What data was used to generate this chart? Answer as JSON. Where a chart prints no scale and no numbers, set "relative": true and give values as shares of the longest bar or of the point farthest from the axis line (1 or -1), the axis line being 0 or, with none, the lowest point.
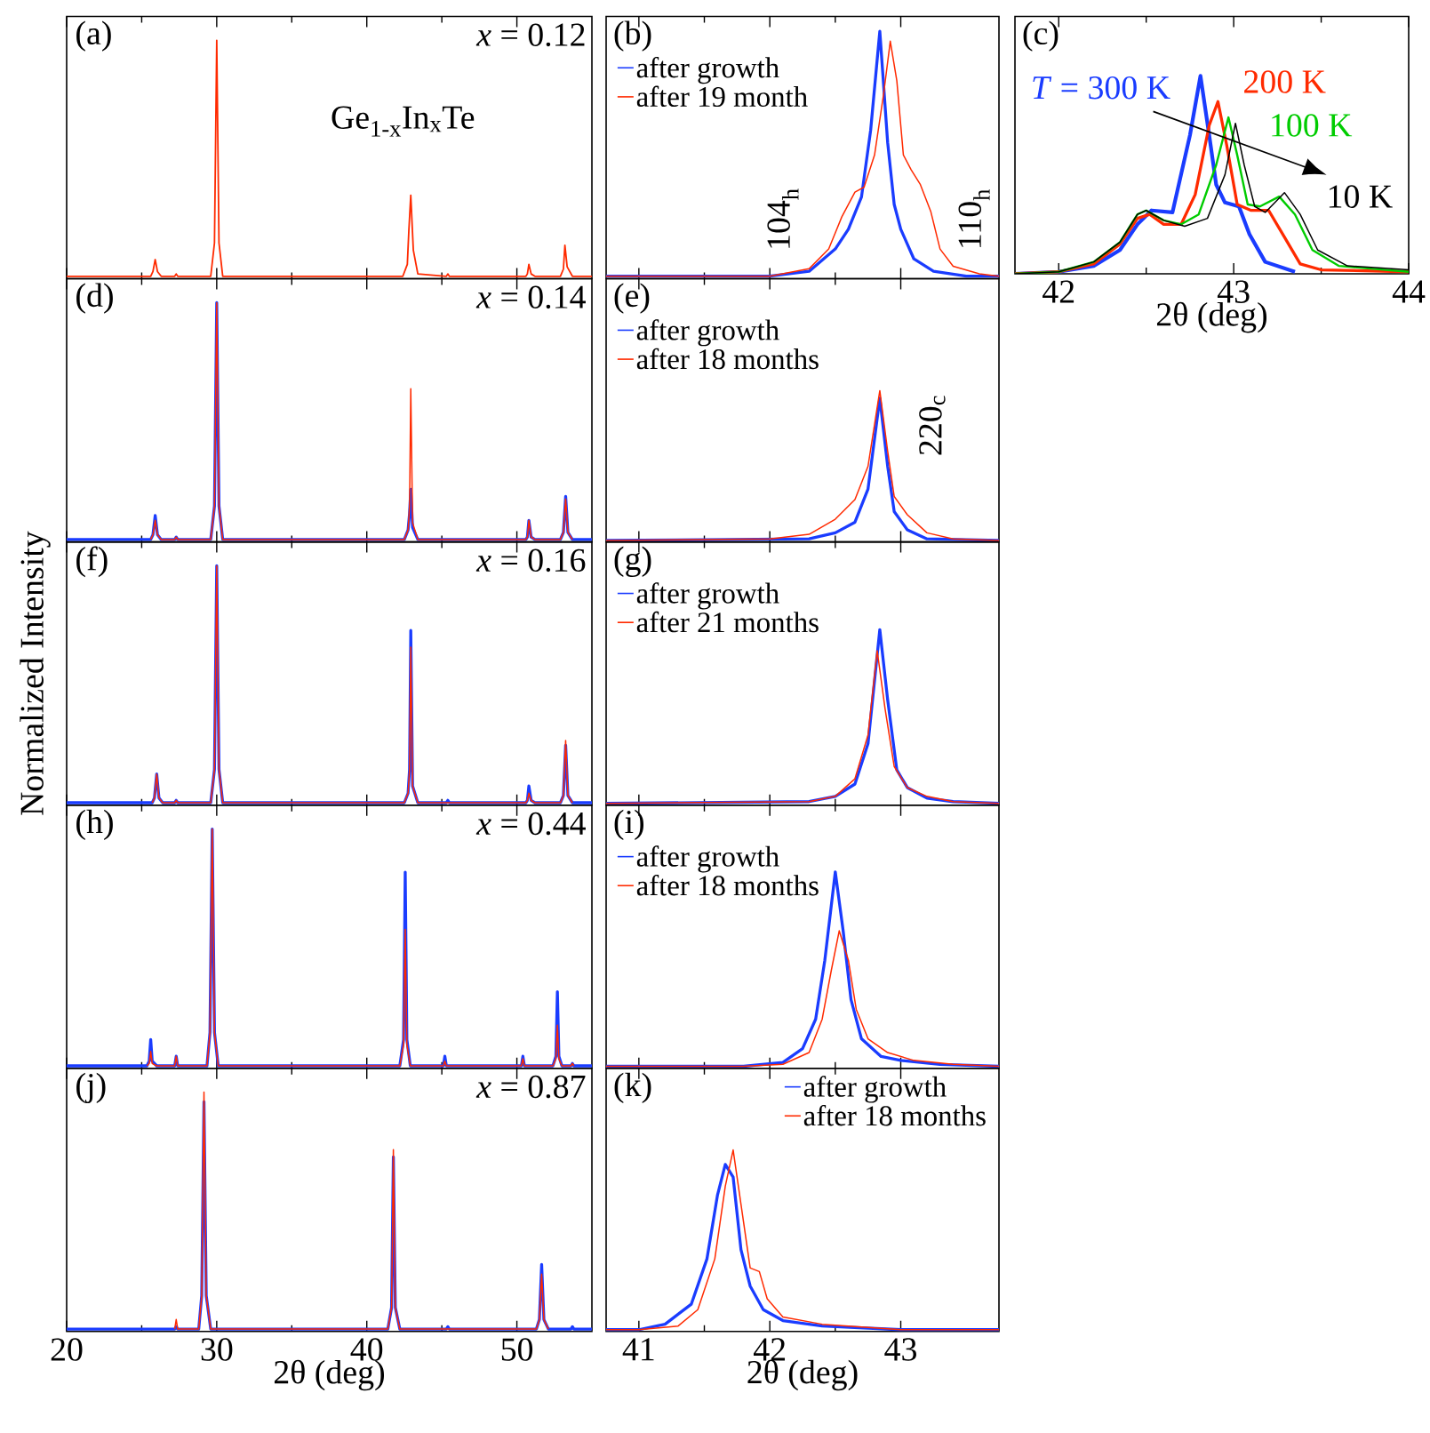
{
  "chart_data": [
    {
      "type": "line",
      "relative": true,
      "xlim": [
        20,
        55
      ],
      "xticks": [
        20,
        30,
        40,
        50
      ],
      "tick_labels": false,
      "annotations": [
        "(a)",
        "*x* = 0.12",
        "Ge$_{1-x}$In$_{x}$Te"
      ],
      "series": [
        {
          "color": "#ff2a00",
          "x": [
            20,
            25.6,
            25.75,
            25.9,
            26.05,
            26.3,
            27.2,
            27.3,
            27.4,
            29.6,
            29.85,
            30.0,
            30.15,
            30.4,
            42.4,
            42.7,
            42.8,
            42.93,
            43.1,
            43.4,
            45.3,
            45.4,
            45.5,
            50.6,
            50.7,
            50.8,
            50.95,
            51.2,
            52.9,
            53.1,
            53.2,
            53.35,
            53.7,
            55
          ],
          "values": [
            0.01,
            0.01,
            0.03,
            0.08,
            0.03,
            0.01,
            0.01,
            0.02,
            0.01,
            0.01,
            0.15,
            1,
            0.15,
            0.01,
            0.01,
            0.06,
            0.2,
            0.35,
            0.12,
            0.02,
            0.01,
            0.02,
            0.01,
            0.01,
            0.02,
            0.06,
            0.02,
            0.01,
            0.01,
            0.04,
            0.14,
            0.05,
            0.01,
            0.01
          ]
        }
      ]
    },
    {
      "type": "line",
      "relative": true,
      "xlim": [
        40.75,
        43.75
      ],
      "xticks": [
        41,
        42,
        43
      ],
      "tick_labels": false,
      "legend": "top left",
      "annotations": [
        "(b)",
        "104$_{h}$",
        "110$_{h}$"
      ],
      "series": [
        {
          "name": "after growth",
          "color": "#1a3cff",
          "x": [
            40.75,
            42.0,
            42.3,
            42.5,
            42.6,
            42.7,
            42.77,
            42.84,
            42.9,
            42.95,
            43.0,
            43.1,
            43.25,
            43.5,
            43.75
          ],
          "values": [
            0.01,
            0.01,
            0.03,
            0.12,
            0.2,
            0.33,
            0.6,
            1,
            0.55,
            0.3,
            0.2,
            0.08,
            0.03,
            0.01,
            0.01
          ]
        },
        {
          "name": "after 19 month",
          "color": "#ff2a00",
          "x": [
            40.75,
            41.5,
            42.0,
            42.3,
            42.45,
            42.55,
            42.65,
            42.72,
            42.8,
            42.87,
            42.92,
            42.97,
            43.02,
            43.08,
            43.15,
            43.23,
            43.3,
            43.4,
            43.6,
            43.75
          ],
          "values": [
            0.01,
            0.01,
            0.01,
            0.04,
            0.12,
            0.25,
            0.35,
            0.37,
            0.5,
            0.75,
            0.96,
            0.8,
            0.5,
            0.44,
            0.38,
            0.27,
            0.12,
            0.05,
            0.02,
            0.01
          ]
        }
      ]
    },
    {
      "type": "line",
      "relative": true,
      "xlim": [
        41.75,
        44
      ],
      "xticks": [
        42,
        43,
        44
      ],
      "tick_labels": "x",
      "xlabel": "2θ (deg)",
      "annotations": [
        "(c)"
      ],
      "series": [
        {
          "name": "*T* = 300 K",
          "color": "#1a3cff",
          "x": [
            41.75,
            42.0,
            42.2,
            42.35,
            42.45,
            42.53,
            42.65,
            42.75,
            42.81,
            42.86,
            42.9,
            42.95,
            43.03,
            43.09,
            43.18,
            43.35
          ],
          "values": [
            0.0,
            0.01,
            0.04,
            0.12,
            0.25,
            0.32,
            0.31,
            0.7,
            1,
            0.7,
            0.45,
            0.36,
            0.34,
            0.2,
            0.06,
            0.01
          ]
        },
        {
          "name": "200 K",
          "color": "#ff2a00",
          "x": [
            41.75,
            42.0,
            42.2,
            42.35,
            42.45,
            42.52,
            42.6,
            42.7,
            42.78,
            42.86,
            42.91,
            42.96,
            43.02,
            43.1,
            43.2,
            43.28,
            43.38,
            43.5,
            44
          ],
          "values": [
            0.0,
            0.01,
            0.05,
            0.15,
            0.28,
            0.3,
            0.25,
            0.25,
            0.4,
            0.75,
            0.87,
            0.65,
            0.35,
            0.32,
            0.32,
            0.2,
            0.05,
            0.02,
            0.01
          ]
        },
        {
          "name": "100 K",
          "color": "#00cc00",
          "x": [
            41.75,
            42.0,
            42.2,
            42.35,
            42.45,
            42.5,
            42.6,
            42.7,
            42.8,
            42.9,
            42.97,
            43.02,
            43.08,
            43.15,
            43.26,
            43.35,
            43.45,
            43.6,
            44
          ],
          "values": [
            0.0,
            0.01,
            0.06,
            0.16,
            0.3,
            0.32,
            0.27,
            0.25,
            0.3,
            0.55,
            0.79,
            0.6,
            0.35,
            0.34,
            0.39,
            0.3,
            0.12,
            0.04,
            0.01
          ]
        },
        {
          "name": "10 K",
          "color": "#000000",
          "x": [
            41.75,
            42.0,
            42.2,
            42.35,
            42.45,
            42.5,
            42.6,
            42.72,
            42.85,
            42.95,
            43.01,
            43.06,
            43.12,
            43.18,
            43.29,
            43.38,
            43.48,
            43.65,
            44
          ],
          "values": [
            0.0,
            0.01,
            0.06,
            0.16,
            0.3,
            0.32,
            0.27,
            0.24,
            0.28,
            0.5,
            0.76,
            0.55,
            0.34,
            0.31,
            0.41,
            0.3,
            0.12,
            0.04,
            0.02
          ]
        }
      ]
    },
    {
      "type": "line",
      "relative": true,
      "xlim": [
        20,
        55
      ],
      "xticks": [
        20,
        30,
        40,
        50
      ],
      "tick_labels": false,
      "annotations": [
        "(d)",
        "*x* = 0.14"
      ],
      "series": [
        {
          "color": "#1a3cff",
          "x": [
            20,
            25.6,
            25.75,
            25.9,
            26.05,
            26.3,
            27.2,
            27.3,
            27.4,
            29.6,
            29.85,
            30.0,
            30.15,
            30.4,
            42.5,
            42.75,
            42.85,
            42.93,
            43.05,
            43.4,
            50.6,
            50.7,
            50.8,
            50.95,
            51.2,
            52.9,
            53.1,
            53.25,
            53.4,
            53.7,
            55
          ],
          "values": [
            0.01,
            0.01,
            0.03,
            0.11,
            0.03,
            0.01,
            0.01,
            0.02,
            0.01,
            0.01,
            0.15,
            1,
            0.15,
            0.01,
            0.01,
            0.05,
            0.12,
            0.22,
            0.06,
            0.01,
            0.01,
            0.02,
            0.09,
            0.02,
            0.01,
            0.01,
            0.04,
            0.19,
            0.04,
            0.01,
            0.01
          ]
        },
        {
          "color": "#ff2a00",
          "x": [
            25.6,
            25.75,
            25.9,
            26.05,
            26.3,
            27.2,
            27.3,
            27.4,
            29.6,
            29.85,
            30.0,
            30.15,
            30.4,
            42.5,
            42.75,
            42.85,
            42.93,
            43.05,
            43.4,
            50.6,
            50.7,
            50.8,
            50.95,
            51.2,
            52.9,
            53.1,
            53.25,
            53.4,
            53.7
          ],
          "values": [
            0.01,
            0.03,
            0.09,
            0.03,
            0.01,
            0.01,
            0.02,
            0.01,
            0.01,
            0.15,
            1,
            0.15,
            0.01,
            0.01,
            0.05,
            0.15,
            0.64,
            0.08,
            0.01,
            0.01,
            0.02,
            0.09,
            0.02,
            0.01,
            0.01,
            0.04,
            0.18,
            0.04,
            0.01
          ]
        }
      ]
    },
    {
      "type": "line",
      "relative": true,
      "xlim": [
        40.75,
        43.75
      ],
      "xticks": [
        41,
        42,
        43
      ],
      "tick_labels": false,
      "legend": "top left",
      "annotations": [
        "(e)",
        "220$_{c}$"
      ],
      "series": [
        {
          "name": "after growth",
          "color": "#1a3cff",
          "x": [
            40.75,
            42.3,
            42.5,
            42.65,
            42.75,
            42.84,
            42.9,
            42.95,
            43.05,
            43.2,
            43.75
          ],
          "values": [
            0.01,
            0.02,
            0.06,
            0.13,
            0.35,
            0.95,
            0.5,
            0.2,
            0.08,
            0.02,
            0.01
          ]
        },
        {
          "name": "after 18 months",
          "color": "#ff2a00",
          "x": [
            40.75,
            42.0,
            42.3,
            42.5,
            42.65,
            42.75,
            42.84,
            42.9,
            42.95,
            43.05,
            43.2,
            43.4,
            43.75
          ],
          "values": [
            0.01,
            0.02,
            0.05,
            0.15,
            0.28,
            0.5,
            1,
            0.6,
            0.3,
            0.18,
            0.06,
            0.02,
            0.01
          ]
        }
      ]
    },
    {
      "type": "line",
      "relative": true,
      "xlim": [
        20,
        55
      ],
      "xticks": [
        20,
        30,
        40,
        50
      ],
      "tick_labels": false,
      "ylabel": "Normalized Intensity",
      "annotations": [
        "(f)",
        "*x* = 0.16"
      ],
      "series": [
        {
          "color": "#1a3cff",
          "x": [
            20,
            25.7,
            25.85,
            26.0,
            26.15,
            26.4,
            27.2,
            27.3,
            27.4,
            29.6,
            29.85,
            30.0,
            30.15,
            30.4,
            42.5,
            42.75,
            42.85,
            42.93,
            43.05,
            43.4,
            45.3,
            45.4,
            45.5,
            50.6,
            50.7,
            50.8,
            50.95,
            51.2,
            52.9,
            53.1,
            53.25,
            53.4,
            53.7,
            55
          ],
          "values": [
            0.01,
            0.01,
            0.03,
            0.13,
            0.03,
            0.01,
            0.01,
            0.02,
            0.01,
            0.01,
            0.15,
            1,
            0.15,
            0.01,
            0.01,
            0.05,
            0.15,
            0.73,
            0.08,
            0.01,
            0.01,
            0.02,
            0.01,
            0.01,
            0.02,
            0.08,
            0.02,
            0.01,
            0.01,
            0.04,
            0.25,
            0.04,
            0.01,
            0.01
          ]
        },
        {
          "color": "#ff2a00",
          "x": [
            25.7,
            25.85,
            26.0,
            26.15,
            26.4,
            27.2,
            27.3,
            27.4,
            29.6,
            29.85,
            30.0,
            30.15,
            30.4,
            42.5,
            42.75,
            42.85,
            42.93,
            43.05,
            43.4,
            50.6,
            50.7,
            50.8,
            50.95,
            51.2,
            52.9,
            53.1,
            53.25,
            53.4,
            53.7
          ],
          "values": [
            0.01,
            0.03,
            0.13,
            0.03,
            0.01,
            0.01,
            0.02,
            0.01,
            0.01,
            0.15,
            1,
            0.15,
            0.01,
            0.01,
            0.05,
            0.15,
            0.66,
            0.08,
            0.01,
            0.01,
            0.02,
            0.05,
            0.02,
            0.01,
            0.01,
            0.04,
            0.27,
            0.04,
            0.01
          ]
        }
      ]
    },
    {
      "type": "line",
      "relative": true,
      "xlim": [
        40.75,
        43.75
      ],
      "xticks": [
        41,
        42,
        43
      ],
      "tick_labels": false,
      "legend": "top left",
      "annotations": [
        "(g)"
      ],
      "series": [
        {
          "name": "after growth",
          "color": "#1a3cff",
          "x": [
            40.75,
            42.3,
            42.5,
            42.65,
            42.75,
            42.84,
            42.9,
            42.97,
            43.05,
            43.2,
            43.4,
            43.75
          ],
          "values": [
            0.01,
            0.02,
            0.05,
            0.12,
            0.35,
            1,
            0.6,
            0.2,
            0.1,
            0.04,
            0.02,
            0.01
          ]
        },
        {
          "name": "after 21 months",
          "color": "#ff2a00",
          "x": [
            40.75,
            42.3,
            42.5,
            42.65,
            42.75,
            42.82,
            42.88,
            42.95,
            43.05,
            43.2,
            43.4,
            43.75
          ],
          "values": [
            0.01,
            0.02,
            0.05,
            0.15,
            0.4,
            0.88,
            0.55,
            0.22,
            0.1,
            0.05,
            0.02,
            0.01
          ]
        }
      ]
    },
    {
      "type": "line",
      "relative": true,
      "xlim": [
        20,
        55
      ],
      "xticks": [
        20,
        30,
        40,
        50
      ],
      "tick_labels": false,
      "annotations": [
        "(h)",
        "*x* = 0.44"
      ],
      "series": [
        {
          "color": "#1a3cff",
          "x": [
            20,
            25.35,
            25.5,
            25.6,
            25.7,
            26.0,
            27.2,
            27.3,
            27.4,
            29.35,
            29.55,
            29.7,
            29.85,
            30.1,
            42.2,
            42.45,
            42.56,
            42.67,
            42.9,
            45.1,
            45.2,
            45.3,
            50.3,
            50.4,
            50.5,
            52.4,
            52.6,
            52.7,
            52.8,
            53.0,
            53.6,
            53.7,
            53.8,
            55
          ],
          "values": [
            0.01,
            0.01,
            0.03,
            0.12,
            0.03,
            0.01,
            0.01,
            0.05,
            0.01,
            0.01,
            0.15,
            1,
            0.15,
            0.01,
            0.01,
            0.12,
            0.82,
            0.12,
            0.01,
            0.01,
            0.05,
            0.01,
            0.01,
            0.05,
            0.01,
            0.01,
            0.05,
            0.32,
            0.05,
            0.01,
            0.01,
            0.02,
            0.01,
            0.01
          ]
        },
        {
          "color": "#ff2a00",
          "x": [
            25.35,
            25.5,
            25.6,
            25.7,
            26.0,
            27.2,
            27.3,
            27.4,
            29.35,
            29.55,
            29.7,
            29.85,
            30.1,
            42.2,
            42.45,
            42.56,
            42.67,
            42.9,
            45.1,
            45.2,
            45.3,
            50.3,
            50.4,
            50.5,
            52.4,
            52.6,
            52.7,
            52.8,
            53.0,
            53.6,
            53.7,
            53.8
          ],
          "values": [
            0.01,
            0.02,
            0.07,
            0.02,
            0.01,
            0.01,
            0.05,
            0.01,
            0.01,
            0.15,
            1,
            0.15,
            0.01,
            0.01,
            0.1,
            0.58,
            0.1,
            0.01,
            0.01,
            0.03,
            0.01,
            0.01,
            0.04,
            0.01,
            0.01,
            0.04,
            0.18,
            0.04,
            0.01,
            0.01,
            0.02,
            0.01
          ]
        }
      ]
    },
    {
      "type": "line",
      "relative": true,
      "xlim": [
        40.75,
        43.75
      ],
      "xticks": [
        41,
        42,
        43
      ],
      "tick_labels": false,
      "legend": "top left",
      "annotations": [
        "(i)"
      ],
      "series": [
        {
          "name": "after growth",
          "color": "#1a3cff",
          "x": [
            40.75,
            41.8,
            42.1,
            42.25,
            42.35,
            42.42,
            42.5,
            42.56,
            42.62,
            42.7,
            42.85,
            43.0,
            43.3,
            43.75
          ],
          "values": [
            0.01,
            0.01,
            0.03,
            0.1,
            0.25,
            0.55,
            1,
            0.7,
            0.35,
            0.15,
            0.06,
            0.04,
            0.02,
            0.01
          ]
        },
        {
          "name": "after 18 months",
          "color": "#ff2a00",
          "x": [
            40.75,
            41.8,
            42.1,
            42.3,
            42.4,
            42.47,
            42.53,
            42.6,
            42.66,
            42.75,
            42.9,
            43.1,
            43.4,
            43.75
          ],
          "values": [
            0.01,
            0.01,
            0.02,
            0.08,
            0.25,
            0.5,
            0.7,
            0.55,
            0.3,
            0.15,
            0.08,
            0.04,
            0.02,
            0.01
          ]
        }
      ]
    },
    {
      "type": "line",
      "relative": true,
      "xlim": [
        20,
        55
      ],
      "xticks": [
        20,
        30,
        40,
        50
      ],
      "tick_labels": "x",
      "xlabel": "2θ (deg)",
      "annotations": [
        "(j)",
        "*x* = 0.87"
      ],
      "series": [
        {
          "color": "#1a3cff",
          "x": [
            20,
            27.2,
            27.3,
            27.4,
            28.8,
            29.0,
            29.15,
            29.3,
            29.6,
            41.4,
            41.65,
            41.77,
            41.9,
            42.2,
            45.3,
            45.4,
            45.5,
            51.3,
            51.5,
            51.65,
            51.8,
            52.1,
            53.6,
            53.7,
            53.8,
            55
          ],
          "values": [
            0.01,
            0.01,
            0.02,
            0.01,
            0.01,
            0.15,
            0.96,
            0.15,
            0.01,
            0.01,
            0.1,
            0.73,
            0.1,
            0.01,
            0.01,
            0.02,
            0.01,
            0.01,
            0.05,
            0.28,
            0.05,
            0.01,
            0.01,
            0.02,
            0.01,
            0.01
          ]
        },
        {
          "color": "#ff2a00",
          "x": [
            27.2,
            27.3,
            27.4,
            28.8,
            29.0,
            29.15,
            29.3,
            29.6,
            41.4,
            41.65,
            41.77,
            41.9,
            42.2,
            51.3,
            51.5,
            51.65,
            51.8,
            52.1
          ],
          "values": [
            0.01,
            0.05,
            0.01,
            0.01,
            0.15,
            1,
            0.15,
            0.01,
            0.01,
            0.1,
            0.76,
            0.1,
            0.01,
            0.01,
            0.05,
            0.24,
            0.05,
            0.01
          ]
        }
      ]
    },
    {
      "type": "line",
      "relative": true,
      "xlim": [
        40.75,
        43.75
      ],
      "xticks": [
        41,
        42,
        43
      ],
      "tick_labels": "x",
      "xlabel": "2θ (deg)",
      "legend": "top right",
      "annotations": [
        "(k)"
      ],
      "series": [
        {
          "name": "after growth",
          "color": "#1a3cff",
          "x": [
            40.75,
            41.0,
            41.2,
            41.4,
            41.52,
            41.6,
            41.66,
            41.72,
            41.78,
            41.85,
            41.95,
            42.1,
            42.4,
            43.0,
            43.75
          ],
          "values": [
            0.01,
            0.01,
            0.04,
            0.15,
            0.4,
            0.75,
            0.92,
            0.85,
            0.45,
            0.25,
            0.12,
            0.06,
            0.03,
            0.01,
            0.01
          ]
        },
        {
          "name": "after 18 months",
          "color": "#ff2a00",
          "x": [
            40.75,
            41.0,
            41.3,
            41.45,
            41.58,
            41.66,
            41.72,
            41.78,
            41.85,
            41.92,
            41.98,
            42.1,
            42.4,
            43.0,
            43.75
          ],
          "values": [
            0.01,
            0.01,
            0.03,
            0.12,
            0.4,
            0.8,
            1,
            0.7,
            0.35,
            0.33,
            0.18,
            0.08,
            0.04,
            0.01,
            0.01
          ]
        }
      ]
    }
  ]
}
